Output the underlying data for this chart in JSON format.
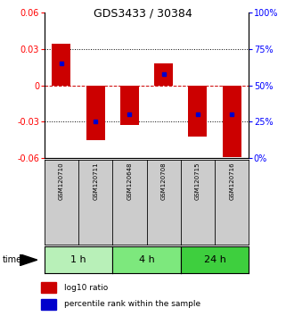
{
  "title": "GDS3433 / 30384",
  "samples": [
    "GSM120710",
    "GSM120711",
    "GSM120648",
    "GSM120708",
    "GSM120715",
    "GSM120716"
  ],
  "groups": [
    {
      "label": "1 h",
      "indices": [
        0,
        1
      ],
      "color": "#b8f0b8"
    },
    {
      "label": "4 h",
      "indices": [
        2,
        3
      ],
      "color": "#7de87d"
    },
    {
      "label": "24 h",
      "indices": [
        4,
        5
      ],
      "color": "#3ecf3e"
    }
  ],
  "log10_ratio": [
    0.034,
    -0.045,
    -0.033,
    0.018,
    -0.042,
    -0.059
  ],
  "percentile_rank": [
    0.65,
    0.25,
    0.3,
    0.58,
    0.3,
    0.3
  ],
  "ylim": [
    -0.06,
    0.06
  ],
  "yticks_left": [
    -0.06,
    -0.03,
    0,
    0.03,
    0.06
  ],
  "yticks_right": [
    0,
    25,
    50,
    75,
    100
  ],
  "bar_color": "#cc0000",
  "blue_color": "#0000cc",
  "title_fontsize": 9,
  "tick_fontsize": 7,
  "sample_fontsize": 5,
  "group_label_fontsize": 8,
  "legend_fontsize": 6.5,
  "sample_cell_color": "#cccccc",
  "zero_line_color": "#cc0000",
  "grid_color": "#000000"
}
